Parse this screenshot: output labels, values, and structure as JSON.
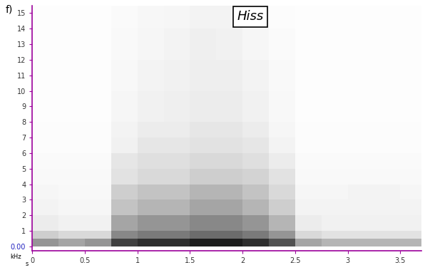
{
  "chart_data": {
    "type": "spectrogram",
    "panel_label": "f)",
    "title": "Hiss",
    "xlabel": "s",
    "ylabel": "kHz",
    "xlim": [
      0,
      3.7
    ],
    "ylim": [
      -0.3,
      15.5
    ],
    "xticks": [
      0,
      0.5,
      1,
      1.5,
      2,
      2.5,
      3,
      3.5
    ],
    "yticks": [
      {
        "value": 0,
        "label": "0.00"
      },
      1,
      2,
      3,
      4,
      5,
      6,
      7,
      8,
      9,
      10,
      11,
      12,
      13,
      14,
      15
    ],
    "grid": false,
    "color": "Greys",
    "time_edges": [
      0,
      0.25,
      0.5,
      0.75,
      1,
      1.25,
      1.5,
      1.75,
      2,
      2.25,
      2.5,
      2.75,
      3,
      3.25,
      3.5,
      3.75
    ],
    "frequency_edges": [
      0,
      0.5,
      1,
      2,
      3,
      4,
      5,
      6,
      7,
      8,
      10,
      12,
      14,
      15.5
    ],
    "value_range": [
      0,
      1
    ],
    "cells": [
      [
        0.5,
        0.45,
        0.5,
        0.8,
        0.85,
        0.85,
        0.9,
        0.9,
        0.85,
        0.75,
        0.45,
        0.4,
        0.4,
        0.4,
        0.4
      ],
      [
        0.3,
        0.25,
        0.25,
        0.55,
        0.6,
        0.6,
        0.65,
        0.65,
        0.6,
        0.5,
        0.25,
        0.2,
        0.2,
        0.2,
        0.2
      ],
      [
        0.15,
        0.12,
        0.12,
        0.45,
        0.5,
        0.5,
        0.55,
        0.55,
        0.5,
        0.4,
        0.15,
        0.12,
        0.12,
        0.12,
        0.12
      ],
      [
        0.1,
        0.08,
        0.08,
        0.35,
        0.4,
        0.4,
        0.45,
        0.45,
        0.4,
        0.3,
        0.1,
        0.1,
        0.1,
        0.1,
        0.1
      ],
      [
        0.08,
        0.06,
        0.06,
        0.3,
        0.35,
        0.35,
        0.4,
        0.4,
        0.35,
        0.25,
        0.08,
        0.08,
        0.1,
        0.1,
        0.08
      ],
      [
        0.05,
        0.05,
        0.05,
        0.2,
        0.25,
        0.25,
        0.3,
        0.3,
        0.28,
        0.2,
        0.05,
        0.05,
        0.05,
        0.05,
        0.05
      ],
      [
        0.04,
        0.04,
        0.04,
        0.18,
        0.22,
        0.22,
        0.25,
        0.25,
        0.22,
        0.15,
        0.04,
        0.04,
        0.04,
        0.04,
        0.04
      ],
      [
        0.03,
        0.03,
        0.03,
        0.12,
        0.18,
        0.18,
        0.2,
        0.2,
        0.18,
        0.1,
        0.03,
        0.03,
        0.03,
        0.03,
        0.03
      ],
      [
        0.03,
        0.03,
        0.03,
        0.1,
        0.15,
        0.15,
        0.18,
        0.18,
        0.15,
        0.08,
        0.03,
        0.03,
        0.03,
        0.03,
        0.03
      ],
      [
        0.02,
        0.02,
        0.02,
        0.08,
        0.12,
        0.13,
        0.15,
        0.15,
        0.12,
        0.06,
        0.02,
        0.02,
        0.02,
        0.02,
        0.02
      ],
      [
        0.02,
        0.02,
        0.02,
        0.06,
        0.1,
        0.12,
        0.14,
        0.14,
        0.1,
        0.05,
        0.02,
        0.02,
        0.02,
        0.02,
        0.02
      ],
      [
        0.02,
        0.02,
        0.02,
        0.05,
        0.08,
        0.1,
        0.13,
        0.12,
        0.08,
        0.04,
        0.02,
        0.02,
        0.02,
        0.02,
        0.02
      ],
      [
        0.02,
        0.02,
        0.02,
        0.04,
        0.07,
        0.08,
        0.1,
        0.1,
        0.07,
        0.03,
        0.02,
        0.02,
        0.02,
        0.02,
        0.02
      ]
    ]
  }
}
